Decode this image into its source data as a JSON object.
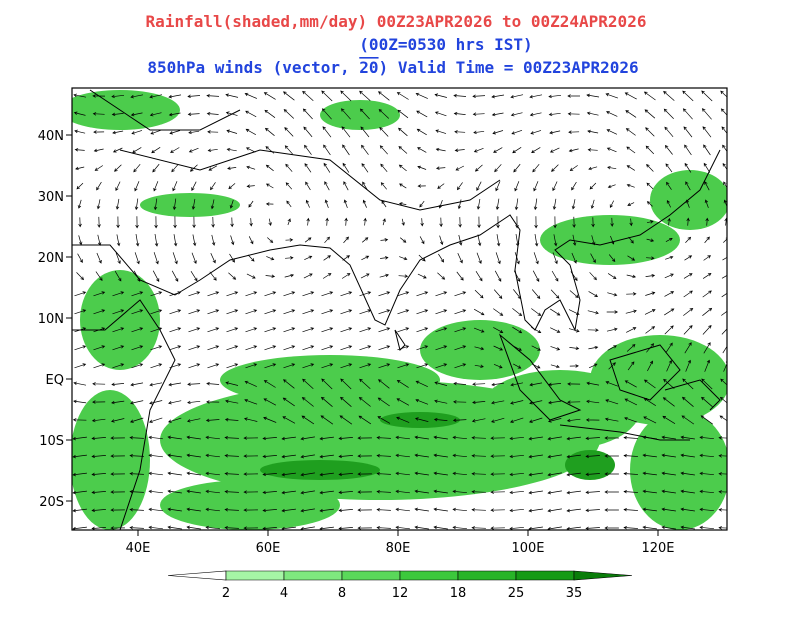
{
  "header": {
    "line1": "Rainfall(shaded,mm/day) 00Z23APR2026 to 00Z24APR2026",
    "line2": "(00Z=0530 hrs IST)",
    "line3_prefix": "850hPa winds (vector,",
    "vector_scale": "20",
    "line3_suffix": ")  Valid Time = 00Z23APR2026"
  },
  "map": {
    "x_labels": [
      "40E",
      "60E",
      "80E",
      "100E",
      "120E"
    ],
    "y_labels": [
      "40N",
      "30N",
      "20N",
      "10N",
      "EQ",
      "10S",
      "20S"
    ]
  },
  "colorbar": {
    "levels": [
      "2",
      "4",
      "8",
      "12",
      "18",
      "25",
      "35"
    ],
    "colors": [
      "#ffffff",
      "#a6f5a6",
      "#7fe87f",
      "#5ad85a",
      "#3cc83c",
      "#28b428",
      "#169a16",
      "#0a7d0a"
    ]
  }
}
